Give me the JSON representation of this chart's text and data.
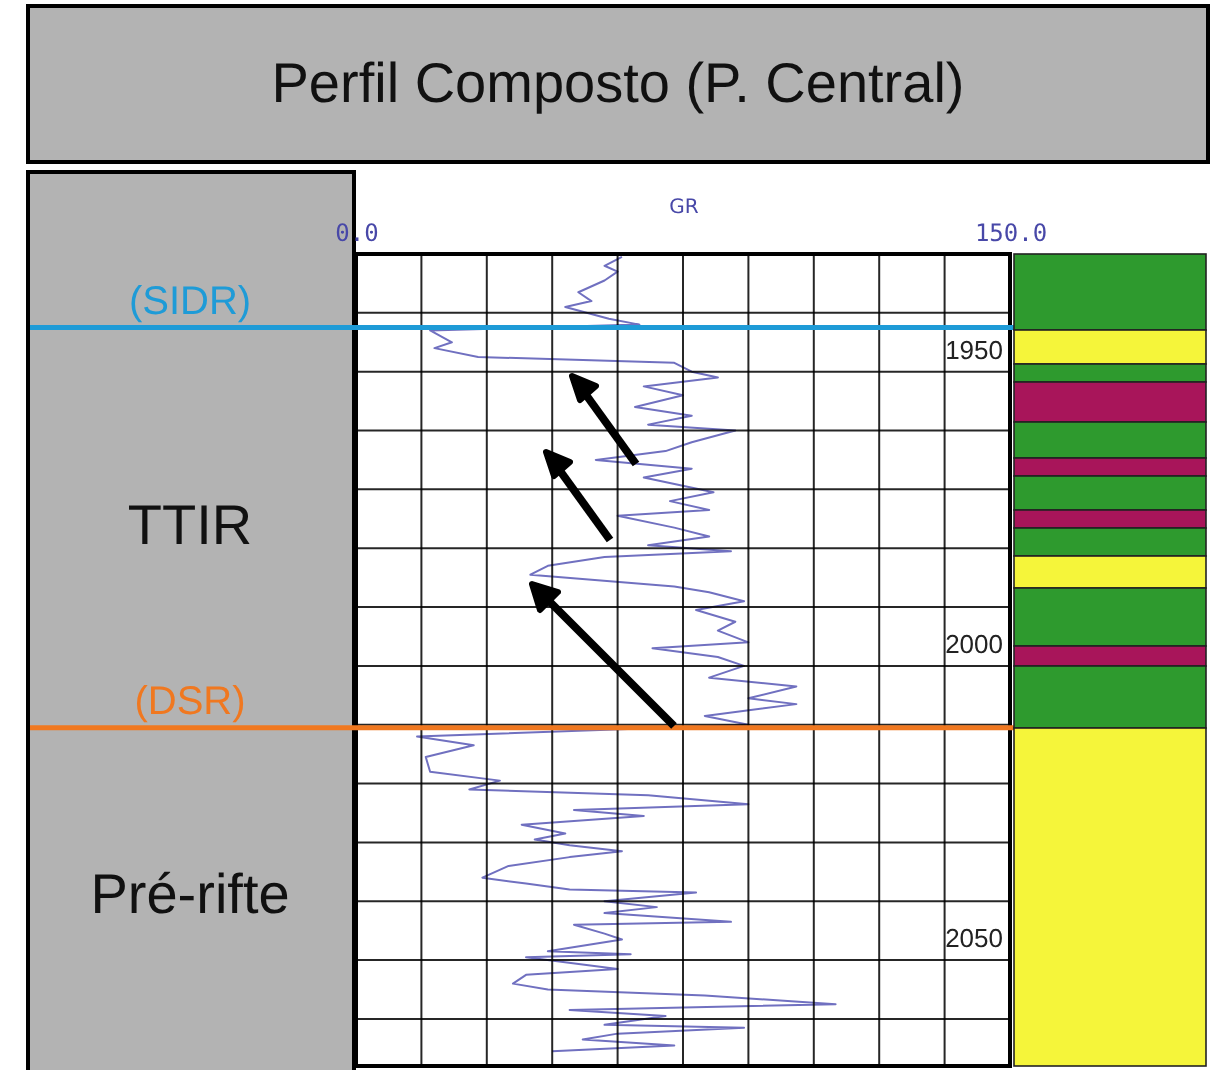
{
  "chart_data": {
    "type": "line",
    "title": "Perfil Composto (P. Central)",
    "xlabel": "GR",
    "series": [
      {
        "color": "#7070c0",
        "x": [
          61,
          57,
          60,
          57,
          51,
          54,
          48,
          58,
          65,
          17,
          22,
          18,
          28,
          73,
          77,
          83,
          66,
          75,
          64,
          77,
          67,
          87,
          77,
          71,
          55,
          77,
          66,
          82,
          72,
          81,
          60,
          73,
          81,
          67,
          86,
          57,
          44,
          40,
          73,
          81,
          89,
          78,
          87,
          83,
          90,
          68,
          83,
          89,
          81,
          101,
          90,
          101,
          80,
          90,
          14,
          27,
          16,
          17,
          33,
          26,
          67,
          90,
          50,
          66,
          38,
          48,
          41,
          49,
          61,
          49,
          35,
          29,
          39,
          49,
          78,
          57,
          69,
          57,
          86,
          50,
          57,
          61,
          44,
          63,
          39,
          60,
          39,
          36,
          44,
          80,
          110,
          49,
          71,
          57,
          89,
          60,
          52,
          73,
          45
        ],
        "values": [
          1930.5,
          1932,
          1933,
          1934.5,
          1936.5,
          1938,
          1939,
          1941,
          1942,
          1943,
          1945,
          1946,
          1947.5,
          1948.5,
          1950,
          1951,
          1952.5,
          1954,
          1956,
          1957.5,
          1959,
          1960,
          1962,
          1963.5,
          1965,
          1966.5,
          1968,
          1970.5,
          1972,
          1973.5,
          1974.5,
          1976.5,
          1978,
          1979.5,
          1980.5,
          1981.5,
          1983,
          1984.5,
          1986.5,
          1987.5,
          1989,
          1990.5,
          1992.5,
          1994,
          1996,
          1997,
          1998.5,
          2000,
          2002,
          2003.5,
          2005.5,
          2006.5,
          2008.5,
          2010,
          2012,
          2013.5,
          2015.5,
          2018,
          2019.5,
          2021,
          2022,
          2023.5,
          2024.5,
          2025.5,
          2027,
          2028.5,
          2029.5,
          2030.5,
          2031.5,
          2032.5,
          2034,
          2036,
          2037,
          2038,
          2038.5,
          2040,
          2041,
          2042,
          2043.5,
          2044,
          2045.5,
          2046.5,
          2048.5,
          2049,
          2049.5,
          2051.5,
          2052.5,
          2054,
          2055,
          2056,
          2057.5,
          2058.5,
          2059.5,
          2061,
          2061.5,
          2062.5,
          2063.5,
          2064.5,
          2065.5
        ]
      }
    ],
    "xlim": [
      0,
      150
    ],
    "xticks": [
      {
        "value": 0,
        "label": "0.0"
      },
      {
        "value": 15,
        "label": null
      },
      {
        "value": 30,
        "label": null
      },
      {
        "value": 45,
        "label": null
      },
      {
        "value": 60,
        "label": null
      },
      {
        "value": 75,
        "label": null
      },
      {
        "value": 90,
        "label": null
      },
      {
        "value": 105,
        "label": null
      },
      {
        "value": 120,
        "label": null
      },
      {
        "value": 135,
        "label": null
      },
      {
        "value": 150,
        "label": "150.0"
      }
    ],
    "ylim": [
      2068,
      1930
    ],
    "yticks": [
      {
        "value": 1930,
        "label": null
      },
      {
        "value": 1940,
        "label": null
      },
      1950,
      {
        "value": 1960,
        "label": null
      },
      {
        "value": 1970,
        "label": null
      },
      {
        "value": 1980,
        "label": null
      },
      {
        "value": 1990,
        "label": null
      },
      2000,
      {
        "value": 2010,
        "label": null
      },
      {
        "value": 2020,
        "label": null
      },
      {
        "value": 2030,
        "label": null
      },
      {
        "value": 2040,
        "label": null
      },
      2050,
      {
        "value": 2060,
        "label": null
      }
    ],
    "grid": true,
    "ref_lines": [
      {
        "axis": "y",
        "value": 1942.5,
        "label": "(SIDR)",
        "color": "#1e9bd7"
      },
      {
        "axis": "y",
        "value": 2010.5,
        "label": "(DSR)",
        "color": "#f07820"
      }
    ],
    "annotations": [
      "TTIR",
      "Pré-rifte"
    ]
  }
}
